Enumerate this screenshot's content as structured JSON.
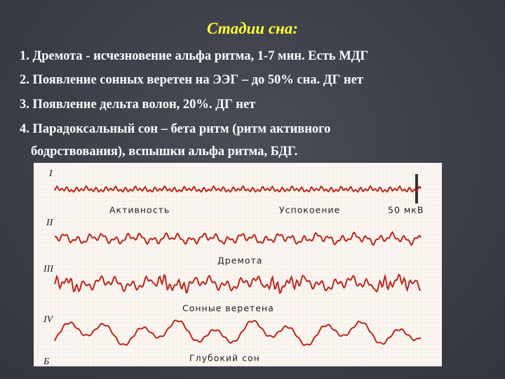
{
  "title": "Стадии сна:",
  "items": [
    [
      "1. Дремота - исчезновение альфа ритма, 1-7 мин. Есть МДГ"
    ],
    [
      "2. Появление сонных веретен на ЭЭГ – до 50%  сна. ДГ нет"
    ],
    [
      "3. Появление дельта волон, 20%. ДГ нет"
    ],
    [
      "4. Парадоксальный сон – бета ритм (ритм активного",
      "бодрствования), вспышки альфа ритма, БДГ."
    ]
  ],
  "figure": {
    "numerals": [
      "I",
      "II",
      "III",
      "IV",
      "Б"
    ],
    "labels": [
      "Активность",
      "Успокоение",
      "50 мкВ",
      "Дремота",
      "Сонные веретена",
      "Глубокий сон"
    ]
  }
}
